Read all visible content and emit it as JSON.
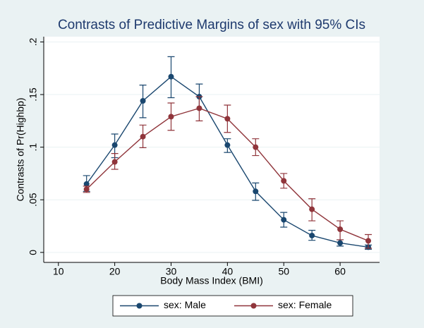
{
  "chart_data": {
    "type": "line",
    "title": "Contrasts of Predictive Margins of sex with 95% CIs",
    "x_label": "Body Mass Index (BMI)",
    "y_label": "Contrasts of Pr(Highbp)",
    "x": [
      15,
      20,
      25,
      30,
      35,
      40,
      45,
      50,
      55,
      60,
      65
    ],
    "series": [
      {
        "name": "sex: Male",
        "color": "#1a476f",
        "values": [
          0.065,
          0.102,
          0.144,
          0.167,
          0.148,
          0.102,
          0.058,
          0.031,
          0.016,
          0.009,
          0.005
        ],
        "lower": [
          0.058,
          0.09,
          0.128,
          0.147,
          0.136,
          0.095,
          0.0495,
          0.024,
          0.0115,
          0.006,
          0.003
        ],
        "upper": [
          0.073,
          0.1125,
          0.159,
          0.186,
          0.16,
          0.108,
          0.066,
          0.038,
          0.021,
          0.012,
          0.007
        ]
      },
      {
        "name": "sex: Female",
        "color": "#90353b",
        "values": [
          0.06,
          0.086,
          0.11,
          0.129,
          0.137,
          0.127,
          0.1,
          0.068,
          0.041,
          0.022,
          0.011
        ],
        "lower": [
          0.057,
          0.079,
          0.0995,
          0.116,
          0.125,
          0.114,
          0.092,
          0.061,
          0.03,
          0.012,
          0.004
        ],
        "upper": [
          0.063,
          0.094,
          0.121,
          0.142,
          0.148,
          0.14,
          0.108,
          0.075,
          0.051,
          0.03,
          0.017
        ]
      }
    ],
    "xlim": [
      7.4,
      67
    ],
    "xticks": [
      10,
      20,
      30,
      40,
      50,
      60
    ],
    "ylim": [
      -0.0095,
      0.205
    ],
    "yticks": [
      0,
      {
        "value": 0.05,
        "label": ".05"
      },
      {
        "value": 0.1,
        "label": ".1"
      },
      {
        "value": 0.15,
        "label": ".15"
      },
      {
        "value": 0.2,
        "label": ".2"
      }
    ],
    "grid": true,
    "legend": "bottom"
  }
}
